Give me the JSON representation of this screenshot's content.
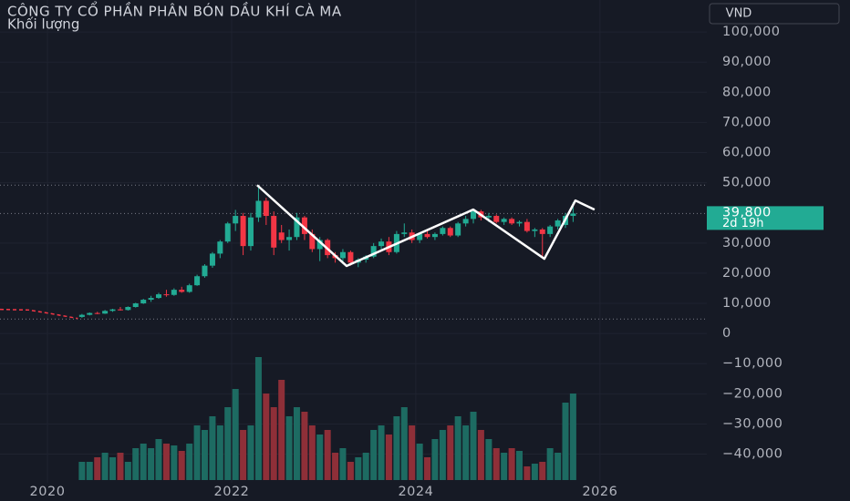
{
  "chart_data": {
    "type": "candlestick",
    "title": "CÔNG TY CỔ PHẦN PHÂN BÓN DẦU KHÍ CÀ MA",
    "subtitle": "Khối lượng",
    "currency": "VND",
    "up_color": "#22ab94",
    "down_color": "#f23645",
    "volume_up_color": "#1d6b62",
    "volume_down_color": "#8e2f38",
    "grid": true,
    "xlim": [
      2019.485,
      2027.16
    ],
    "xticks": [
      2020,
      2022,
      2024,
      2026
    ],
    "ylim": [
      -49500,
      110600
    ],
    "yticks": [
      {
        "value": 100000,
        "label": "100,000"
      },
      {
        "value": 90000,
        "label": "90,000"
      },
      {
        "value": 80000,
        "label": "80,000"
      },
      {
        "value": 70000,
        "label": "70,000"
      },
      {
        "value": 60000,
        "label": "60,000"
      },
      {
        "value": 50000,
        "label": "50,000"
      },
      {
        "value": 30000,
        "label": "30,000"
      },
      {
        "value": 20000,
        "label": "20,000"
      },
      {
        "value": 10000,
        "label": "10,000"
      },
      0,
      {
        "value": -10000,
        "label": "−10,000"
      },
      {
        "value": -20000,
        "label": "−20,000"
      },
      {
        "value": -30000,
        "label": "−30,000"
      },
      {
        "value": -40000,
        "label": "−40,000"
      }
    ],
    "volume_lim": [
      0,
      140
    ],
    "x": [
      2020.375,
      2020.458,
      2020.542,
      2020.625,
      2020.708,
      2020.792,
      2020.875,
      2020.958,
      2021.042,
      2021.125,
      2021.208,
      2021.292,
      2021.375,
      2021.458,
      2021.542,
      2021.625,
      2021.708,
      2021.792,
      2021.875,
      2021.958,
      2022.042,
      2022.125,
      2022.208,
      2022.292,
      2022.375,
      2022.458,
      2022.542,
      2022.625,
      2022.708,
      2022.792,
      2022.875,
      2022.958,
      2023.042,
      2023.125,
      2023.208,
      2023.292,
      2023.375,
      2023.458,
      2023.542,
      2023.625,
      2023.708,
      2023.792,
      2023.875,
      2023.958,
      2024.042,
      2024.125,
      2024.208,
      2024.292,
      2024.375,
      2024.458,
      2024.542,
      2024.625,
      2024.708,
      2024.792,
      2024.875,
      2024.958,
      2025.042,
      2025.125,
      2025.208,
      2025.292,
      2025.375,
      2025.458,
      2025.542,
      2025.625,
      2025.708
    ],
    "open": [
      5500,
      6200,
      6800,
      6600,
      7500,
      8000,
      7800,
      8800,
      10000,
      11200,
      11800,
      13000,
      12800,
      14500,
      13800,
      16000,
      19000,
      22500,
      26500,
      30500,
      36500,
      39000,
      29000,
      38500,
      44000,
      39000,
      33500,
      31000,
      32000,
      38500,
      33000,
      28000,
      31000,
      26000,
      25000,
      27000,
      23500,
      24500,
      25500,
      29000,
      30500,
      27000,
      33000,
      33500,
      31000,
      33000,
      32000,
      33000,
      35000,
      32500,
      36500,
      38000,
      40500,
      38500,
      39000,
      37000,
      38000,
      36500,
      37000,
      34000,
      34500,
      33000,
      35500,
      36000,
      39000
    ],
    "high": [
      6500,
      7000,
      7200,
      7800,
      8200,
      8800,
      9000,
      10200,
      11500,
      12500,
      13500,
      14500,
      15000,
      15500,
      16500,
      19500,
      23000,
      27000,
      31000,
      37000,
      41000,
      40000,
      40000,
      49200,
      45000,
      40500,
      36000,
      34500,
      40000,
      39000,
      34500,
      32000,
      31500,
      27000,
      28000,
      27500,
      25000,
      26000,
      30000,
      31500,
      32000,
      34000,
      36500,
      34500,
      33500,
      34000,
      33500,
      35500,
      35500,
      37000,
      39000,
      41000,
      41000,
      40000,
      39500,
      38500,
      38500,
      37500,
      38000,
      35000,
      35000,
      36000,
      38000,
      40000,
      43500
    ],
    "low": [
      5200,
      6000,
      6400,
      6500,
      7200,
      7600,
      7600,
      8600,
      9800,
      10500,
      11500,
      12200,
      12500,
      13500,
      13500,
      15800,
      18500,
      21800,
      25000,
      30000,
      34000,
      26000,
      27500,
      37000,
      36000,
      26000,
      30000,
      27500,
      31000,
      31000,
      27000,
      24000,
      25000,
      23500,
      23000,
      22500,
      22000,
      23500,
      25000,
      28000,
      26000,
      26500,
      32000,
      30000,
      30000,
      31500,
      31000,
      32500,
      32000,
      32000,
      35500,
      36500,
      37500,
      37000,
      36500,
      36000,
      36000,
      35500,
      33500,
      32000,
      25000,
      32000,
      34500,
      35000,
      37000
    ],
    "close": [
      6200,
      6800,
      6600,
      7500,
      8000,
      7800,
      8800,
      10000,
      11200,
      11800,
      13000,
      12800,
      14500,
      13800,
      16000,
      19000,
      22500,
      26500,
      30500,
      36500,
      39000,
      29000,
      38500,
      44000,
      39000,
      28500,
      31000,
      32000,
      38500,
      33000,
      28000,
      31000,
      26000,
      25000,
      27000,
      23500,
      24500,
      25500,
      29000,
      30500,
      27000,
      33000,
      33500,
      31000,
      33000,
      32000,
      33000,
      35000,
      32500,
      36500,
      38000,
      40500,
      38500,
      39000,
      37000,
      38000,
      36500,
      37000,
      34000,
      34500,
      33000,
      35500,
      37500,
      39000,
      39800
    ],
    "volume": [
      20,
      20,
      25,
      30,
      25,
      30,
      20,
      35,
      40,
      35,
      45,
      40,
      38,
      32,
      40,
      60,
      55,
      70,
      60,
      80,
      100,
      55,
      60,
      135,
      95,
      80,
      110,
      70,
      80,
      75,
      60,
      50,
      55,
      30,
      35,
      20,
      25,
      30,
      55,
      60,
      50,
      70,
      80,
      60,
      40,
      25,
      45,
      55,
      60,
      70,
      60,
      75,
      55,
      45,
      35,
      30,
      35,
      32,
      15,
      18,
      20,
      35,
      30,
      85,
      95
    ],
    "pre_line": {
      "x": [
        2019.485,
        2019.8,
        2020.0,
        2020.33
      ],
      "values": [
        8000,
        7800,
        6800,
        5000
      ],
      "color": "#f23645"
    },
    "pattern": {
      "x": [
        2022.277,
        2023.248,
        2024.624,
        2025.396,
        2025.733,
        2025.941
      ],
      "values": [
        49200,
        22400,
        41100,
        24800,
        44100,
        41100
      ],
      "color": "#ffffff"
    },
    "high_line": 49200,
    "low_line": 4800,
    "last_price": {
      "value": 39800,
      "label": "39,800"
    },
    "countdown": "2d 19h"
  }
}
